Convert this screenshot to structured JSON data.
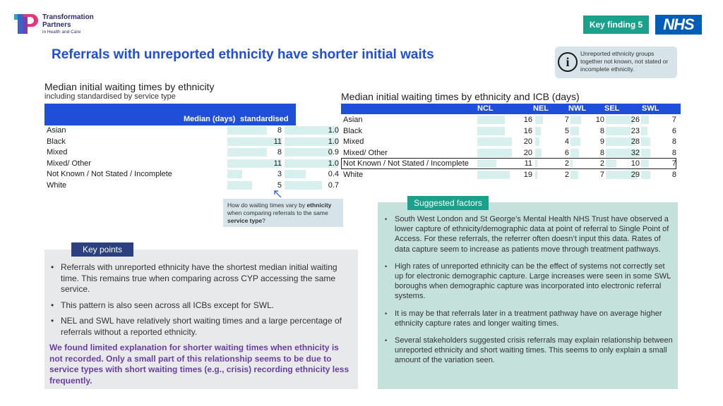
{
  "logo": {
    "line1": "Transformation",
    "line2": "Partners",
    "line3": "in Health and Care"
  },
  "header": {
    "key_finding": "Key finding 5",
    "nhs": "NHS",
    "title": "Referrals with unreported ethnicity have shorter initial waits"
  },
  "info": {
    "icon": "i",
    "text": "Unreported ethnicity groups together not known, not stated or incomplete ethnicity."
  },
  "left_table": {
    "title": "Median initial waiting times by ethnicity",
    "subtitle": "including standardised by service type",
    "col1": "Median (days)",
    "col2_line1": "Median -",
    "col2_line2": "standardised",
    "rows": [
      {
        "label": "Asian",
        "median": "8",
        "std": "1.0"
      },
      {
        "label": "Black",
        "median": "11",
        "std": "1.0"
      },
      {
        "label": "Mixed",
        "median": "8",
        "std": "0.9"
      },
      {
        "label": "Mixed/ Other",
        "median": "11",
        "std": "1.0"
      },
      {
        "label": "Not Known / Not Stated / Incomplete",
        "median": "3",
        "std": "0.4"
      },
      {
        "label": "White",
        "median": "5",
        "std": "0.7"
      }
    ]
  },
  "right_table": {
    "title": "Median initial waiting times by ethnicity and ICB (days)",
    "columns": [
      "NCL",
      "NEL",
      "NWL",
      "SEL",
      "SWL"
    ],
    "rows": [
      {
        "label": "Asian",
        "values": [
          "16",
          "7",
          "10",
          "26",
          "7"
        ]
      },
      {
        "label": "Black",
        "values": [
          "16",
          "5",
          "8",
          "23",
          "6"
        ]
      },
      {
        "label": "Mixed",
        "values": [
          "20",
          "4",
          "9",
          "28",
          "8"
        ]
      },
      {
        "label": "Mixed/ Other",
        "values": [
          "20",
          "6",
          "8",
          "32",
          "8"
        ]
      },
      {
        "label": "Not Known / Not Stated / Incomplete",
        "values": [
          "11",
          "2",
          "2",
          "10",
          "7"
        ]
      },
      {
        "label": "White",
        "values": [
          "19",
          "2",
          "7",
          "29",
          "8"
        ]
      }
    ]
  },
  "callout": {
    "pre": "How do waiting times vary by ",
    "b1": "ethnicity",
    "mid": " when comparing referrals to the same ",
    "b2": "service type",
    "post": "?"
  },
  "key_points": {
    "tag": "Key points",
    "items": [
      "Referrals with unreported ethnicity have the shortest median initial waiting time. This remains true when comparing across CYP accessing the same service.",
      "This pattern is also seen across all ICBs except for SWL.",
      "NEL and SWL have relatively short waiting times and a large percentage of referrals without a reported ethnicity."
    ],
    "conclusion": "We found limited explanation for shorter waiting times when ethnicity is not recorded. Only a small part of this relationship seems to be due to service types with short waiting times (e.g., crisis) recording ethnicity less frequently."
  },
  "suggested_factors": {
    "tag": "Suggested factors",
    "items": [
      "South West London and St George’s Mental Health NHS Trust have observed a lower capture of ethnicity/demographic data at point of referral to Single Point of Access. For these referrals, the referrer often doesn’t input this data. Rates of data capture seem to increase as patients move through treatment pathways.",
      "High rates of unreported ethnicity can be the effect of systems not correctly set up for electronic demographic capture. Large increases were seen in some SWL boroughs when demographic capture was incorporated into electronic referral systems.",
      "It is may be that referrals later in a treatment pathway have on average higher ethnicity capture rates and longer waiting times.",
      "Several stakeholders suggested crisis referrals may explain relationship between unreported ethnicity and short waiting times. This seems to only explain a small amount of the variation seen."
    ]
  },
  "colors": {
    "accent_blue": "#1f4fd8",
    "teal": "#1aa08b",
    "nhs_blue": "#005eb8",
    "bar_fill": "#d7efed",
    "purple": "#6a3fa5"
  }
}
